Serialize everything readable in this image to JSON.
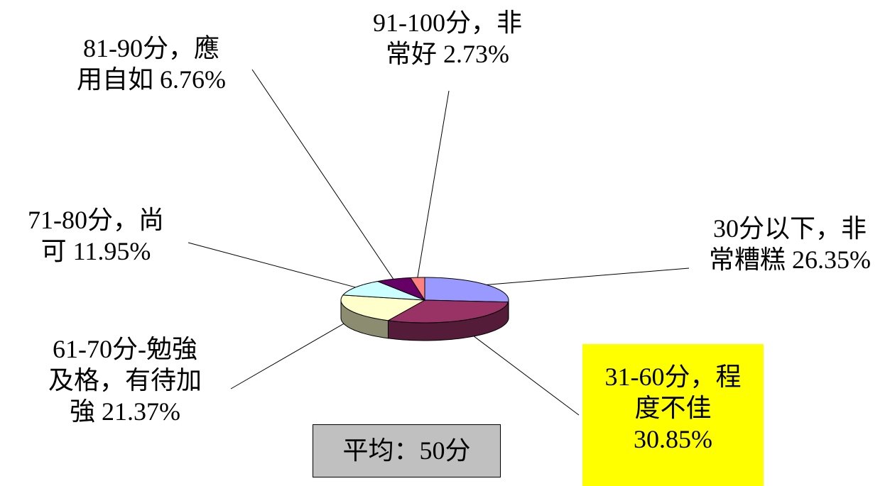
{
  "chart_data": {
    "type": "pie",
    "categories": [
      "30分以下，非常糟糕",
      "31-60分，程度不佳",
      "61-70分-勉強及格，有待加強",
      "71-80分，尚可",
      "81-90分，應用自如",
      "91-100分，非常好"
    ],
    "values": [
      26.35,
      30.85,
      21.37,
      11.95,
      6.76,
      2.73
    ],
    "value_labels": [
      "26.35%",
      "30.85%",
      "21.37%",
      "11.95%",
      "6.76%",
      "2.73%"
    ],
    "colors": [
      "#9999ff",
      "#993366",
      "#ffffcc",
      "#ccffff",
      "#660066",
      "#ff8080"
    ],
    "annotation": "平均：50分"
  }
}
